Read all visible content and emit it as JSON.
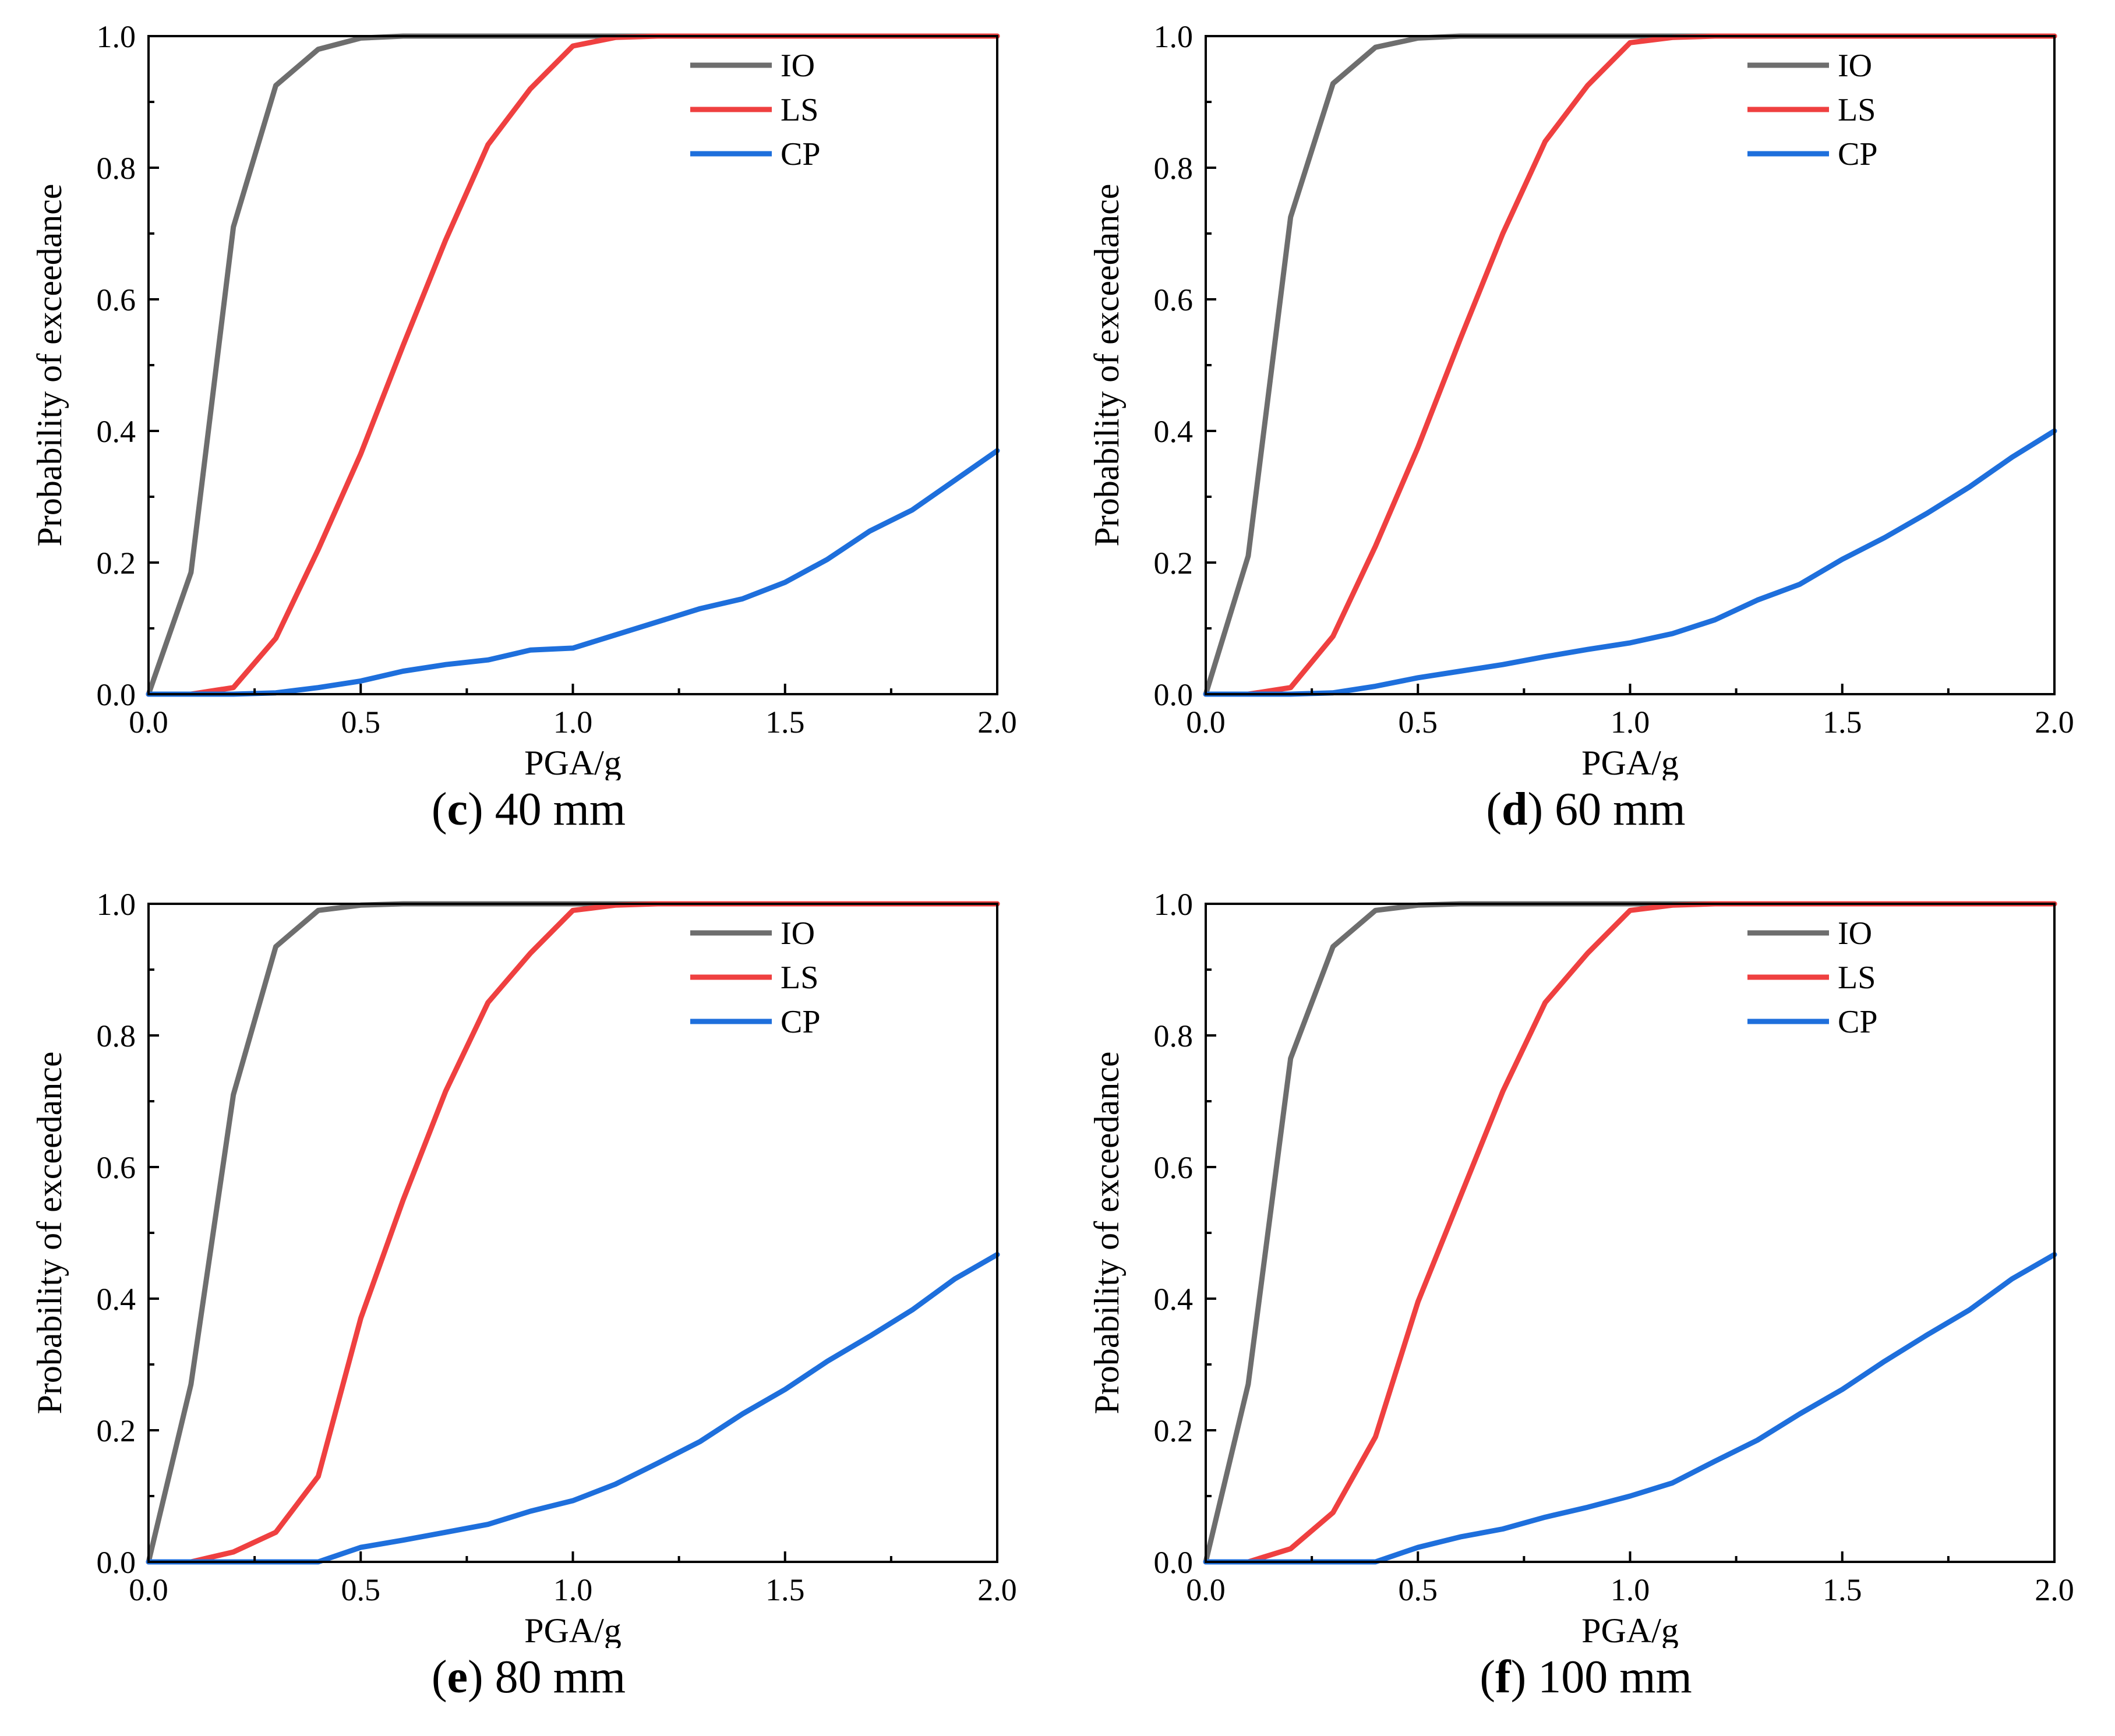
{
  "figure": {
    "colors": {
      "IO": "#6e6e6e",
      "LS": "#ef4040",
      "CP": "#1e6fdc"
    }
  },
  "chart_data": [
    {
      "type": "line",
      "panel_letter": "c",
      "caption_text": " 40 mm",
      "xlabel": "PGA/g",
      "ylabel": "Probability of exceedance",
      "xlim": [
        0,
        2.0
      ],
      "ylim": [
        0,
        1.0
      ],
      "xticks": [
        "0.0",
        "0.5",
        "1.0",
        "1.5",
        "2.0"
      ],
      "yticks": [
        "0.0",
        "0.2",
        "0.4",
        "0.6",
        "0.8",
        "1.0"
      ],
      "legend": "top-right",
      "x": [
        0,
        0.1,
        0.2,
        0.3,
        0.4,
        0.5,
        0.6,
        0.7,
        0.8,
        0.9,
        1.0,
        1.1,
        1.2,
        1.3,
        1.4,
        1.5,
        1.6,
        1.7,
        1.8,
        1.9,
        2.0
      ],
      "series": [
        {
          "name": "IO",
          "values": [
            0,
            0.185,
            0.71,
            0.925,
            0.98,
            0.997,
            1,
            1,
            1,
            1,
            1,
            1,
            1,
            1,
            1,
            1,
            1,
            1,
            1,
            1,
            1
          ]
        },
        {
          "name": "LS",
          "values": [
            0,
            0,
            0.01,
            0.085,
            0.22,
            0.365,
            0.53,
            0.69,
            0.835,
            0.92,
            0.985,
            0.998,
            1,
            1,
            1,
            1,
            1,
            1,
            1,
            1,
            1
          ]
        },
        {
          "name": "CP",
          "values": [
            0,
            0,
            0,
            0.002,
            0.01,
            0.02,
            0.035,
            0.045,
            0.052,
            0.067,
            0.07,
            0.09,
            0.11,
            0.13,
            0.145,
            0.17,
            0.205,
            0.248,
            0.28,
            0.325,
            0.37
          ]
        }
      ]
    },
    {
      "type": "line",
      "panel_letter": "d",
      "caption_text": " 60 mm",
      "xlabel": "PGA/g",
      "ylabel": "Probability of exceedance",
      "xlim": [
        0,
        2.0
      ],
      "ylim": [
        0,
        1.0
      ],
      "xticks": [
        "0.0",
        "0.5",
        "1.0",
        "1.5",
        "2.0"
      ],
      "yticks": [
        "0.0",
        "0.2",
        "0.4",
        "0.6",
        "0.8",
        "1.0"
      ],
      "legend": "top-right",
      "x": [
        0,
        0.1,
        0.2,
        0.3,
        0.4,
        0.5,
        0.6,
        0.7,
        0.8,
        0.9,
        1.0,
        1.1,
        1.2,
        1.3,
        1.4,
        1.5,
        1.6,
        1.7,
        1.8,
        1.9,
        2.0
      ],
      "series": [
        {
          "name": "IO",
          "values": [
            0,
            0.21,
            0.725,
            0.928,
            0.983,
            0.997,
            1,
            1,
            1,
            1,
            1,
            1,
            1,
            1,
            1,
            1,
            1,
            1,
            1,
            1,
            1
          ]
        },
        {
          "name": "LS",
          "values": [
            0,
            0,
            0.01,
            0.088,
            0.225,
            0.375,
            0.54,
            0.7,
            0.84,
            0.925,
            0.99,
            0.998,
            1,
            1,
            1,
            1,
            1,
            1,
            1,
            1,
            1
          ]
        },
        {
          "name": "CP",
          "values": [
            0,
            0,
            0,
            0.002,
            0.012,
            0.025,
            0.035,
            0.045,
            0.057,
            0.068,
            0.078,
            0.092,
            0.113,
            0.143,
            0.167,
            0.205,
            0.238,
            0.275,
            0.315,
            0.36,
            0.4
          ]
        }
      ]
    },
    {
      "type": "line",
      "panel_letter": "e",
      "caption_text": " 80 mm",
      "xlabel": "PGA/g",
      "ylabel": "Probability of exceedance",
      "xlim": [
        0,
        2.0
      ],
      "ylim": [
        0,
        1.0
      ],
      "xticks": [
        "0.0",
        "0.5",
        "1.0",
        "1.5",
        "2.0"
      ],
      "yticks": [
        "0.0",
        "0.2",
        "0.4",
        "0.6",
        "0.8",
        "1.0"
      ],
      "legend": "top-right",
      "x": [
        0,
        0.1,
        0.2,
        0.3,
        0.4,
        0.5,
        0.6,
        0.7,
        0.8,
        0.9,
        1.0,
        1.1,
        1.2,
        1.3,
        1.4,
        1.5,
        1.6,
        1.7,
        1.8,
        1.9,
        2.0
      ],
      "series": [
        {
          "name": "IO",
          "values": [
            0,
            0.27,
            0.71,
            0.935,
            0.99,
            0.998,
            1,
            1,
            1,
            1,
            1,
            1,
            1,
            1,
            1,
            1,
            1,
            1,
            1,
            1,
            1
          ]
        },
        {
          "name": "LS",
          "values": [
            0,
            0,
            0.015,
            0.045,
            0.13,
            0.37,
            0.55,
            0.715,
            0.85,
            0.925,
            0.99,
            0.998,
            1,
            1,
            1,
            1,
            1,
            1,
            1,
            1,
            1
          ]
        },
        {
          "name": "CP",
          "values": [
            0,
            0,
            0,
            0,
            0,
            0.022,
            0.033,
            0.045,
            0.057,
            0.077,
            0.093,
            0.118,
            0.15,
            0.183,
            0.225,
            0.262,
            0.305,
            0.343,
            0.383,
            0.43,
            0.467
          ]
        }
      ]
    },
    {
      "type": "line",
      "panel_letter": "f",
      "caption_text": " 100 mm",
      "xlabel": "PGA/g",
      "ylabel": "Probability of exceedance",
      "xlim": [
        0,
        2.0
      ],
      "ylim": [
        0,
        1.0
      ],
      "xticks": [
        "0.0",
        "0.5",
        "1.0",
        "1.5",
        "2.0"
      ],
      "yticks": [
        "0.0",
        "0.2",
        "0.4",
        "0.6",
        "0.8",
        "1.0"
      ],
      "legend": "top-right",
      "x": [
        0,
        0.1,
        0.2,
        0.3,
        0.4,
        0.5,
        0.6,
        0.7,
        0.8,
        0.9,
        1.0,
        1.1,
        1.2,
        1.3,
        1.4,
        1.5,
        1.6,
        1.7,
        1.8,
        1.9,
        2.0
      ],
      "series": [
        {
          "name": "IO",
          "values": [
            0,
            0.27,
            0.765,
            0.935,
            0.99,
            0.998,
            1,
            1,
            1,
            1,
            1,
            1,
            1,
            1,
            1,
            1,
            1,
            1,
            1,
            1,
            1
          ]
        },
        {
          "name": "LS",
          "values": [
            0,
            0,
            0.02,
            0.075,
            0.19,
            0.395,
            0.555,
            0.715,
            0.85,
            0.925,
            0.99,
            0.998,
            1,
            1,
            1,
            1,
            1,
            1,
            1,
            1,
            1
          ]
        },
        {
          "name": "CP",
          "values": [
            0,
            0,
            0,
            0,
            0,
            0.022,
            0.038,
            0.05,
            0.068,
            0.083,
            0.1,
            0.12,
            0.153,
            0.185,
            0.225,
            0.262,
            0.305,
            0.345,
            0.383,
            0.43,
            0.467
          ]
        }
      ]
    }
  ]
}
